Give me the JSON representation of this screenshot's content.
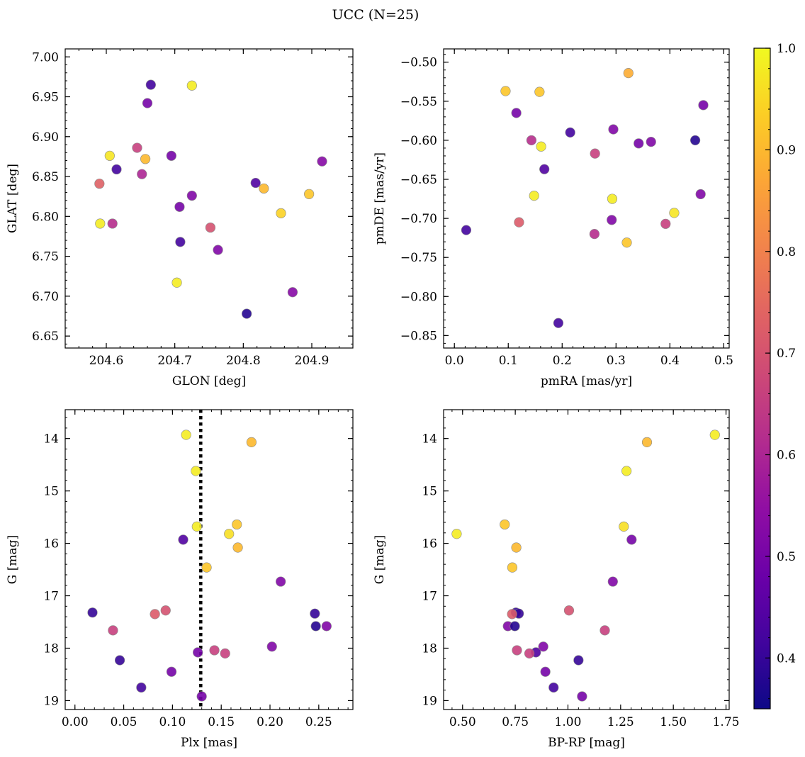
{
  "figure_title": "UCC (N=25)",
  "colorbar": {
    "cmap": "plasma",
    "vmin": 0.35,
    "vmax": 1.0,
    "ticks": [
      "0.4",
      "0.5",
      "0.6",
      "0.7",
      "0.8",
      "0.9",
      "1.0"
    ],
    "tick_values": [
      0.4,
      0.5,
      0.6,
      0.7,
      0.8,
      0.9,
      1.0
    ]
  },
  "chart_data": [
    {
      "type": "scatter",
      "xlabel": "GLON [deg]",
      "ylabel": "GLAT [deg]",
      "xlim": [
        204.54,
        204.96
      ],
      "ylim": [
        6.635,
        7.01
      ],
      "y_inverted": false,
      "xticks": [
        "204.6",
        "204.7",
        "204.8",
        "204.9"
      ],
      "xtick_values": [
        204.6,
        204.7,
        204.8,
        204.9
      ],
      "yticks": [
        "6.65",
        "6.70",
        "6.75",
        "6.80",
        "6.85",
        "6.90",
        "6.95",
        "7.00"
      ],
      "ytick_values": [
        6.65,
        6.7,
        6.75,
        6.8,
        6.85,
        6.9,
        6.95,
        7.0
      ],
      "points": [
        {
          "x": 204.665,
          "y": 6.965,
          "c": 0.42
        },
        {
          "x": 204.725,
          "y": 6.964,
          "c": 0.98
        },
        {
          "x": 204.66,
          "y": 6.942,
          "c": 0.5
        },
        {
          "x": 204.645,
          "y": 6.886,
          "c": 0.66
        },
        {
          "x": 204.605,
          "y": 6.876,
          "c": 0.97
        },
        {
          "x": 204.657,
          "y": 6.872,
          "c": 0.9
        },
        {
          "x": 204.695,
          "y": 6.876,
          "c": 0.5
        },
        {
          "x": 204.915,
          "y": 6.869,
          "c": 0.53
        },
        {
          "x": 204.615,
          "y": 6.859,
          "c": 0.42
        },
        {
          "x": 204.652,
          "y": 6.853,
          "c": 0.6
        },
        {
          "x": 204.818,
          "y": 6.842,
          "c": 0.44
        },
        {
          "x": 204.59,
          "y": 6.841,
          "c": 0.73
        },
        {
          "x": 204.83,
          "y": 6.835,
          "c": 0.9
        },
        {
          "x": 204.896,
          "y": 6.828,
          "c": 0.92
        },
        {
          "x": 204.725,
          "y": 6.826,
          "c": 0.52
        },
        {
          "x": 204.707,
          "y": 6.812,
          "c": 0.5
        },
        {
          "x": 204.855,
          "y": 6.804,
          "c": 0.94
        },
        {
          "x": 204.591,
          "y": 6.791,
          "c": 0.98
        },
        {
          "x": 204.609,
          "y": 6.791,
          "c": 0.62
        },
        {
          "x": 204.752,
          "y": 6.786,
          "c": 0.7
        },
        {
          "x": 204.708,
          "y": 6.768,
          "c": 0.42
        },
        {
          "x": 204.763,
          "y": 6.758,
          "c": 0.52
        },
        {
          "x": 204.703,
          "y": 6.717,
          "c": 0.98
        },
        {
          "x": 204.872,
          "y": 6.705,
          "c": 0.53
        },
        {
          "x": 204.805,
          "y": 6.678,
          "c": 0.38
        }
      ]
    },
    {
      "type": "scatter",
      "xlabel": "pmRA [mas/yr]",
      "ylabel": "pmDE [mas/yr]",
      "xlim": [
        -0.02,
        0.51
      ],
      "ylim": [
        -0.866,
        -0.483
      ],
      "y_inverted": false,
      "xticks": [
        "0.0",
        "0.1",
        "0.2",
        "0.3",
        "0.4",
        "0.5"
      ],
      "xtick_values": [
        0.0,
        0.1,
        0.2,
        0.3,
        0.4,
        0.5
      ],
      "yticks": [
        "−0.85",
        "−0.80",
        "−0.75",
        "−0.70",
        "−0.65",
        "−0.60",
        "−0.55",
        "−0.50"
      ],
      "ytick_values": [
        -0.85,
        -0.8,
        -0.75,
        -0.7,
        -0.65,
        -0.6,
        -0.55,
        -0.5
      ],
      "points": [
        {
          "x": 0.323,
          "y": -0.514,
          "c": 0.88
        },
        {
          "x": 0.095,
          "y": -0.537,
          "c": 0.92
        },
        {
          "x": 0.158,
          "y": -0.538,
          "c": 0.92
        },
        {
          "x": 0.462,
          "y": -0.555,
          "c": 0.5
        },
        {
          "x": 0.115,
          "y": -0.565,
          "c": 0.5
        },
        {
          "x": 0.215,
          "y": -0.59,
          "c": 0.42
        },
        {
          "x": 0.295,
          "y": -0.586,
          "c": 0.52
        },
        {
          "x": 0.143,
          "y": -0.6,
          "c": 0.62
        },
        {
          "x": 0.447,
          "y": -0.6,
          "c": 0.38
        },
        {
          "x": 0.342,
          "y": -0.604,
          "c": 0.5
        },
        {
          "x": 0.365,
          "y": -0.602,
          "c": 0.52
        },
        {
          "x": 0.161,
          "y": -0.608,
          "c": 0.98
        },
        {
          "x": 0.261,
          "y": -0.617,
          "c": 0.66
        },
        {
          "x": 0.167,
          "y": -0.637,
          "c": 0.44
        },
        {
          "x": 0.148,
          "y": -0.671,
          "c": 0.98
        },
        {
          "x": 0.457,
          "y": -0.669,
          "c": 0.52
        },
        {
          "x": 0.293,
          "y": -0.675,
          "c": 0.98
        },
        {
          "x": 0.408,
          "y": -0.693,
          "c": 0.97
        },
        {
          "x": 0.292,
          "y": -0.702,
          "c": 0.52
        },
        {
          "x": 0.12,
          "y": -0.705,
          "c": 0.72
        },
        {
          "x": 0.392,
          "y": -0.707,
          "c": 0.66
        },
        {
          "x": 0.022,
          "y": -0.715,
          "c": 0.42
        },
        {
          "x": 0.26,
          "y": -0.72,
          "c": 0.62
        },
        {
          "x": 0.32,
          "y": -0.731,
          "c": 0.92
        },
        {
          "x": 0.193,
          "y": -0.834,
          "c": 0.42
        }
      ]
    },
    {
      "type": "scatter",
      "xlabel": "Plx [mas]",
      "ylabel": "G [mag]",
      "xlim": [
        -0.01,
        0.285
      ],
      "ylim": [
        19.17,
        13.45
      ],
      "y_inverted": true,
      "xticks": [
        "0.00",
        "0.05",
        "0.10",
        "0.15",
        "0.20",
        "0.25"
      ],
      "xtick_values": [
        0.0,
        0.05,
        0.1,
        0.15,
        0.2,
        0.25
      ],
      "yticks": [
        "14",
        "15",
        "16",
        "17",
        "18",
        "19"
      ],
      "ytick_values": [
        14,
        15,
        16,
        17,
        18,
        19
      ],
      "vline": {
        "x": 0.129,
        "style": "dotted"
      },
      "points": [
        {
          "x": 0.114,
          "y": 13.93,
          "c": 0.98
        },
        {
          "x": 0.181,
          "y": 14.07,
          "c": 0.9
        },
        {
          "x": 0.124,
          "y": 14.62,
          "c": 0.98
        },
        {
          "x": 0.166,
          "y": 15.64,
          "c": 0.92
        },
        {
          "x": 0.125,
          "y": 15.68,
          "c": 0.98
        },
        {
          "x": 0.158,
          "y": 15.82,
          "c": 0.96
        },
        {
          "x": 0.111,
          "y": 15.93,
          "c": 0.44
        },
        {
          "x": 0.167,
          "y": 16.08,
          "c": 0.9
        },
        {
          "x": 0.135,
          "y": 16.46,
          "c": 0.92
        },
        {
          "x": 0.211,
          "y": 16.73,
          "c": 0.52
        },
        {
          "x": 0.093,
          "y": 17.28,
          "c": 0.7
        },
        {
          "x": 0.018,
          "y": 17.32,
          "c": 0.4
        },
        {
          "x": 0.082,
          "y": 17.35,
          "c": 0.72
        },
        {
          "x": 0.246,
          "y": 17.34,
          "c": 0.4
        },
        {
          "x": 0.247,
          "y": 17.58,
          "c": 0.38
        },
        {
          "x": 0.258,
          "y": 17.58,
          "c": 0.52
        },
        {
          "x": 0.039,
          "y": 17.66,
          "c": 0.66
        },
        {
          "x": 0.202,
          "y": 17.97,
          "c": 0.52
        },
        {
          "x": 0.143,
          "y": 18.04,
          "c": 0.66
        },
        {
          "x": 0.126,
          "y": 18.08,
          "c": 0.5
        },
        {
          "x": 0.154,
          "y": 18.1,
          "c": 0.66
        },
        {
          "x": 0.046,
          "y": 18.23,
          "c": 0.4
        },
        {
          "x": 0.099,
          "y": 18.45,
          "c": 0.5
        },
        {
          "x": 0.068,
          "y": 18.75,
          "c": 0.42
        },
        {
          "x": 0.13,
          "y": 18.92,
          "c": 0.5
        }
      ]
    },
    {
      "type": "scatter",
      "xlabel": "BP-RP [mag]",
      "ylabel": "G [mag]",
      "xlim": [
        0.41,
        1.765
      ],
      "ylim": [
        19.17,
        13.45
      ],
      "y_inverted": true,
      "xticks": [
        "0.50",
        "0.75",
        "1.00",
        "1.25",
        "1.50",
        "1.75"
      ],
      "xtick_values": [
        0.5,
        0.75,
        1.0,
        1.25,
        1.5,
        1.75
      ],
      "yticks": [
        "14",
        "15",
        "16",
        "17",
        "18",
        "19"
      ],
      "ytick_values": [
        14,
        15,
        16,
        17,
        18,
        19
      ],
      "points": [
        {
          "x": 1.697,
          "y": 13.93,
          "c": 0.98
        },
        {
          "x": 1.375,
          "y": 14.07,
          "c": 0.9
        },
        {
          "x": 1.278,
          "y": 14.62,
          "c": 0.98
        },
        {
          "x": 0.7,
          "y": 15.64,
          "c": 0.92
        },
        {
          "x": 1.265,
          "y": 15.68,
          "c": 0.96
        },
        {
          "x": 0.472,
          "y": 15.82,
          "c": 0.98
        },
        {
          "x": 1.302,
          "y": 15.93,
          "c": 0.5
        },
        {
          "x": 0.755,
          "y": 16.08,
          "c": 0.9
        },
        {
          "x": 0.736,
          "y": 16.46,
          "c": 0.92
        },
        {
          "x": 1.213,
          "y": 16.73,
          "c": 0.52
        },
        {
          "x": 1.005,
          "y": 17.28,
          "c": 0.7
        },
        {
          "x": 0.753,
          "y": 17.32,
          "c": 0.4
        },
        {
          "x": 0.767,
          "y": 17.34,
          "c": 0.4
        },
        {
          "x": 0.735,
          "y": 17.35,
          "c": 0.72
        },
        {
          "x": 0.715,
          "y": 17.58,
          "c": 0.52
        },
        {
          "x": 0.748,
          "y": 17.58,
          "c": 0.38
        },
        {
          "x": 1.175,
          "y": 17.66,
          "c": 0.66
        },
        {
          "x": 0.883,
          "y": 17.97,
          "c": 0.52
        },
        {
          "x": 0.758,
          "y": 18.04,
          "c": 0.66
        },
        {
          "x": 0.848,
          "y": 18.08,
          "c": 0.44
        },
        {
          "x": 0.817,
          "y": 18.1,
          "c": 0.66
        },
        {
          "x": 1.05,
          "y": 18.23,
          "c": 0.4
        },
        {
          "x": 0.893,
          "y": 18.45,
          "c": 0.5
        },
        {
          "x": 0.932,
          "y": 18.75,
          "c": 0.42
        },
        {
          "x": 1.067,
          "y": 18.92,
          "c": 0.5
        }
      ]
    }
  ]
}
